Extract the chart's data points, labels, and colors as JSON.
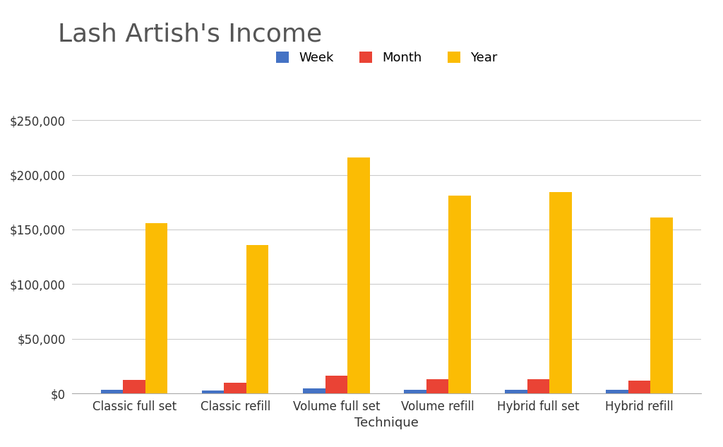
{
  "title": "Lash Artish's Income",
  "categories": [
    "Classic full set",
    "Classic refill",
    "Volume full set",
    "Volume refill",
    "Hybrid full set",
    "Hybrid refill"
  ],
  "series": [
    {
      "name": "Week",
      "color": "#4472C4",
      "values": [
        3000,
        2500,
        4500,
        3500,
        3500,
        3000
      ]
    },
    {
      "name": "Month",
      "color": "#EA4335",
      "values": [
        12000,
        10000,
        16000,
        13000,
        13000,
        11500
      ]
    },
    {
      "name": "Year",
      "color": "#FBBC04",
      "values": [
        156000,
        136000,
        216000,
        181000,
        184000,
        161000
      ]
    }
  ],
  "xlabel": "Technique",
  "ylabel": "",
  "ylim": [
    0,
    270000
  ],
  "yticks": [
    0,
    50000,
    100000,
    150000,
    200000,
    250000
  ],
  "ytick_labels": [
    "$0",
    "$50,000",
    "$100,000",
    "$150,000",
    "$200,000",
    "$250,000"
  ],
  "title_fontsize": 26,
  "axis_label_fontsize": 13,
  "tick_fontsize": 12,
  "legend_fontsize": 13,
  "bar_width": 0.22,
  "background_color": "#ffffff",
  "grid_color": "#cccccc",
  "title_color": "#555555",
  "axis_text_color": "#333333"
}
